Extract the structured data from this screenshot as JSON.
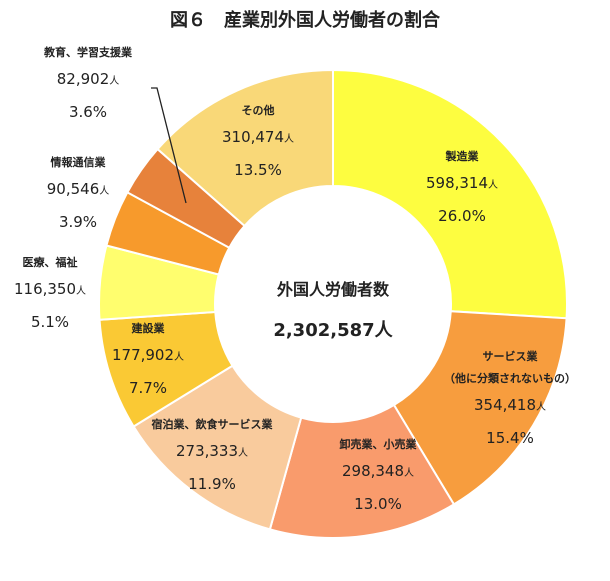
{
  "chart_data": {
    "type": "pie",
    "title": "図６　産業別外国人労働者の割合",
    "center_label": "外国人労働者数",
    "center_value": "2,302,587人",
    "unit": "人",
    "slices": [
      {
        "name": "製造業",
        "value": "598,314",
        "percent": 26.0,
        "color": "#FDFD40"
      },
      {
        "name": "サービス業",
        "name2": "（他に分類されないもの）",
        "value": "354,418",
        "percent": 15.4,
        "color": "#F79D3E"
      },
      {
        "name": "卸売業、小売業",
        "value": "298,348",
        "percent": 13.0,
        "color": "#F99B6C"
      },
      {
        "name": "宿泊業、飲食サービス業",
        "value": "273,333",
        "percent": 11.9,
        "color": "#F9CB9D"
      },
      {
        "name": "建設業",
        "value": "177,902",
        "percent": 7.7,
        "color": "#FAC934"
      },
      {
        "name": "医療、福祉",
        "value": "116,350",
        "percent": 5.1,
        "color": "#FFFE6E"
      },
      {
        "name": "情報通信業",
        "value": "90,546",
        "percent": 3.9,
        "color": "#F79A2C"
      },
      {
        "name": "教育、学習支援業",
        "value": "82,902",
        "percent": 3.6,
        "color": "#E7823B"
      },
      {
        "name": "その他",
        "value": "310,474",
        "percent": 13.5,
        "color": "#F9D878"
      }
    ]
  }
}
